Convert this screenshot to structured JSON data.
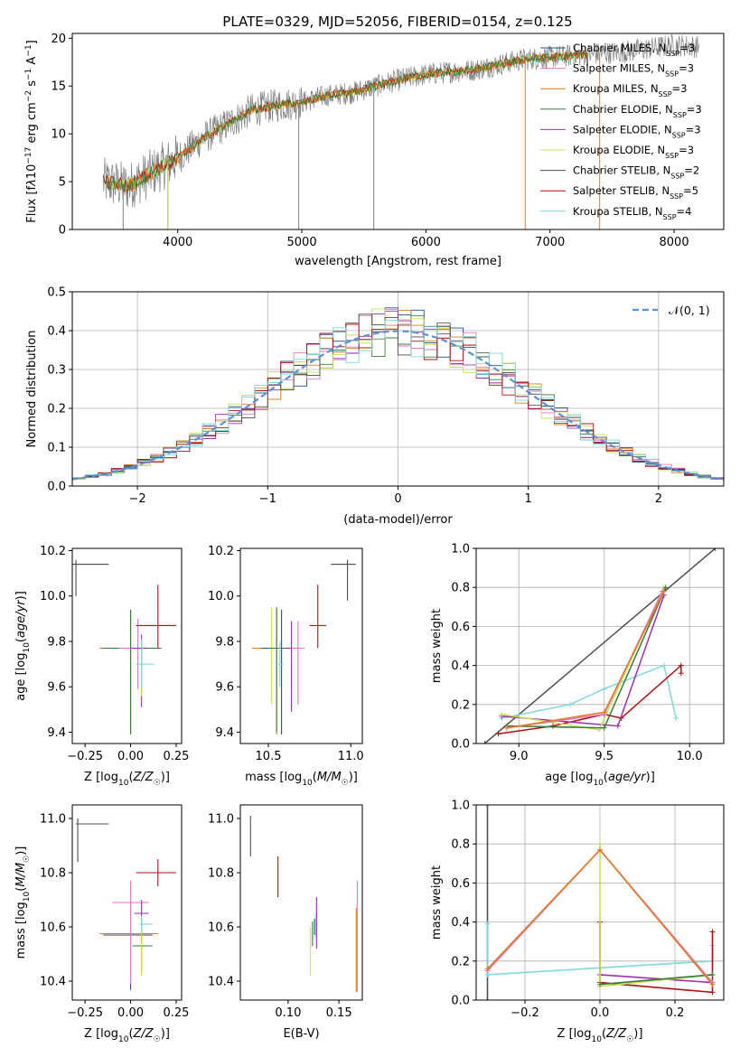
{
  "title": "PLATE=0329, MJD=52056, FIBERID=0154, z=0.125",
  "colors": {
    "chabrier_miles": "#1f4e8c",
    "salpeter_miles": "#e377c2",
    "kroupa_miles": "#e07b22",
    "chabrier_elodie": "#3a7a3a",
    "salpeter_elodie": "#9b30b0",
    "kroupa_elodie": "#c8e05a",
    "chabrier_stelib": "#4d4d4d",
    "salpeter_stelib": "#b01010",
    "kroupa_stelib": "#7fd8dc",
    "normal": "#5b8fd8",
    "grid": "#b0b0b0"
  },
  "chart_data": [
    {
      "id": "spectrum",
      "type": "line",
      "xlabel": "wavelength [Angstrom, rest frame]",
      "ylabel": "Flux [f_λ 10^-17 erg cm^-2 s^-1 A^-1]",
      "xlim": [
        3150,
        8400
      ],
      "ylim": [
        0,
        20.5
      ],
      "xticks": [
        4000,
        5000,
        6000,
        7000,
        8000
      ],
      "yticks": [
        0,
        5,
        10,
        15,
        20
      ],
      "grid": false,
      "legend_position": "top-right",
      "legend": [
        {
          "key": "chabrier_miles",
          "label": "Chabrier MILES, N",
          "sub": "SSP",
          "suffix": "=3"
        },
        {
          "key": "salpeter_miles",
          "label": "Salpeter MILES, N",
          "sub": "SSP",
          "suffix": "=3"
        },
        {
          "key": "kroupa_miles",
          "label": "Kroupa MILES, N",
          "sub": "SSP",
          "suffix": "=3"
        },
        {
          "key": "chabrier_elodie",
          "label": "Chabrier ELODIE, N",
          "sub": "SSP",
          "suffix": "=3"
        },
        {
          "key": "salpeter_elodie",
          "label": "Salpeter ELODIE, N",
          "sub": "SSP",
          "suffix": "=3"
        },
        {
          "key": "kroupa_elodie",
          "label": "Kroupa ELODIE, N",
          "sub": "SSP",
          "suffix": "=3"
        },
        {
          "key": "chabrier_stelib",
          "label": "Chabrier STELIB, N",
          "sub": "SSP",
          "suffix": "=2"
        },
        {
          "key": "salpeter_stelib",
          "label": "Salpeter STELIB, N",
          "sub": "SSP",
          "suffix": "=5"
        },
        {
          "key": "kroupa_stelib",
          "label": "Kroupa STELIB, N",
          "sub": "SSP",
          "suffix": "=4"
        }
      ],
      "continuum": [
        [
          3400,
          5.0
        ],
        [
          3600,
          4.5
        ],
        [
          3800,
          6.0
        ],
        [
          4000,
          7.5
        ],
        [
          4200,
          9.5
        ],
        [
          4400,
          11.0
        ],
        [
          4600,
          12.5
        ],
        [
          4800,
          13.0
        ],
        [
          5000,
          13.3
        ],
        [
          5200,
          14.0
        ],
        [
          5400,
          14.3
        ],
        [
          5600,
          15.0
        ],
        [
          5800,
          15.7
        ],
        [
          6000,
          16.2
        ],
        [
          6200,
          16.5
        ],
        [
          6400,
          16.7
        ],
        [
          6600,
          17.3
        ],
        [
          6800,
          17.8
        ],
        [
          7000,
          18.0
        ],
        [
          7200,
          18.2
        ],
        [
          7400,
          18.4
        ],
        [
          7600,
          18.6
        ],
        [
          7800,
          18.9
        ],
        [
          8000,
          19.3
        ],
        [
          8200,
          19.1
        ]
      ],
      "spikes": [
        [
          3560,
          0
        ],
        [
          3920,
          0
        ],
        [
          4975,
          0
        ],
        [
          5580,
          0
        ],
        [
          6800,
          0
        ],
        [
          7400,
          0
        ]
      ]
    },
    {
      "id": "residuals",
      "type": "bar",
      "xlabel": "(data-model)/error",
      "ylabel": "Normed distribution",
      "xlim": [
        -2.5,
        2.5
      ],
      "ylim": [
        0,
        0.5
      ],
      "xticks": [
        -2,
        -1,
        0,
        1,
        2
      ],
      "yticks": [
        0.0,
        0.1,
        0.2,
        0.3,
        0.4,
        0.5
      ],
      "grid": true,
      "legend_position": "top-right",
      "legend_label": "𝒩(0, 1)"
    },
    {
      "id": "age_vs_Z",
      "type": "scatter",
      "xlabel": "Z [log10(Z/Z☉)]",
      "ylabel": "age  [log10(age/yr)]",
      "xlim": [
        -0.32,
        0.28
      ],
      "ylim": [
        9.35,
        10.21
      ],
      "xticks": [
        -0.25,
        0.0,
        0.25
      ],
      "yticks": [
        9.4,
        9.6,
        9.8,
        10.0,
        10.2
      ]
    },
    {
      "id": "age_vs_mass",
      "type": "scatter",
      "xlabel": "mass [log10(M/M☉)]",
      "xlim": [
        10.33,
        11.07
      ],
      "ylim": [
        9.35,
        10.21
      ],
      "xticks": [
        10.5,
        11.0
      ],
      "yticks": [
        9.4,
        9.6,
        9.8,
        10.0,
        10.2
      ]
    },
    {
      "id": "massweight_vs_age",
      "type": "line",
      "xlabel": "age  [log10(age/yr)]",
      "ylabel": "mass weight",
      "xlim": [
        8.75,
        10.2
      ],
      "ylim": [
        0,
        1.0
      ],
      "xticks": [
        9.0,
        9.5,
        10.0
      ],
      "yticks": [
        0.0,
        0.2,
        0.4,
        0.6,
        0.8,
        1.0
      ],
      "grid": true
    },
    {
      "id": "mass_vs_Z",
      "type": "scatter",
      "xlabel": "Z [log10(Z/Z☉)]",
      "ylabel": "mass [log10(M/M☉)]",
      "xlim": [
        -0.32,
        0.28
      ],
      "ylim": [
        10.33,
        11.05
      ],
      "xticks": [
        -0.25,
        0.0,
        0.25
      ],
      "yticks": [
        10.4,
        10.6,
        10.8,
        11.0
      ]
    },
    {
      "id": "mass_vs_EBV",
      "type": "scatter",
      "xlabel": "E(B-V)",
      "xlim": [
        0.053,
        0.173
      ],
      "ylim": [
        10.33,
        11.05
      ],
      "xticks": [
        0.1,
        0.15
      ],
      "yticks": [
        10.4,
        10.6,
        10.8,
        11.0
      ]
    },
    {
      "id": "massweight_vs_Z",
      "type": "line",
      "xlabel": "Z [log10(Z/Z☉)]",
      "ylabel": "mass weight",
      "xlim": [
        -0.33,
        0.33
      ],
      "ylim": [
        0,
        1.0
      ],
      "xticks": [
        -0.2,
        0.0,
        0.2
      ],
      "yticks": [
        0.0,
        0.2,
        0.4,
        0.6,
        0.8,
        1.0
      ],
      "grid": true
    }
  ]
}
